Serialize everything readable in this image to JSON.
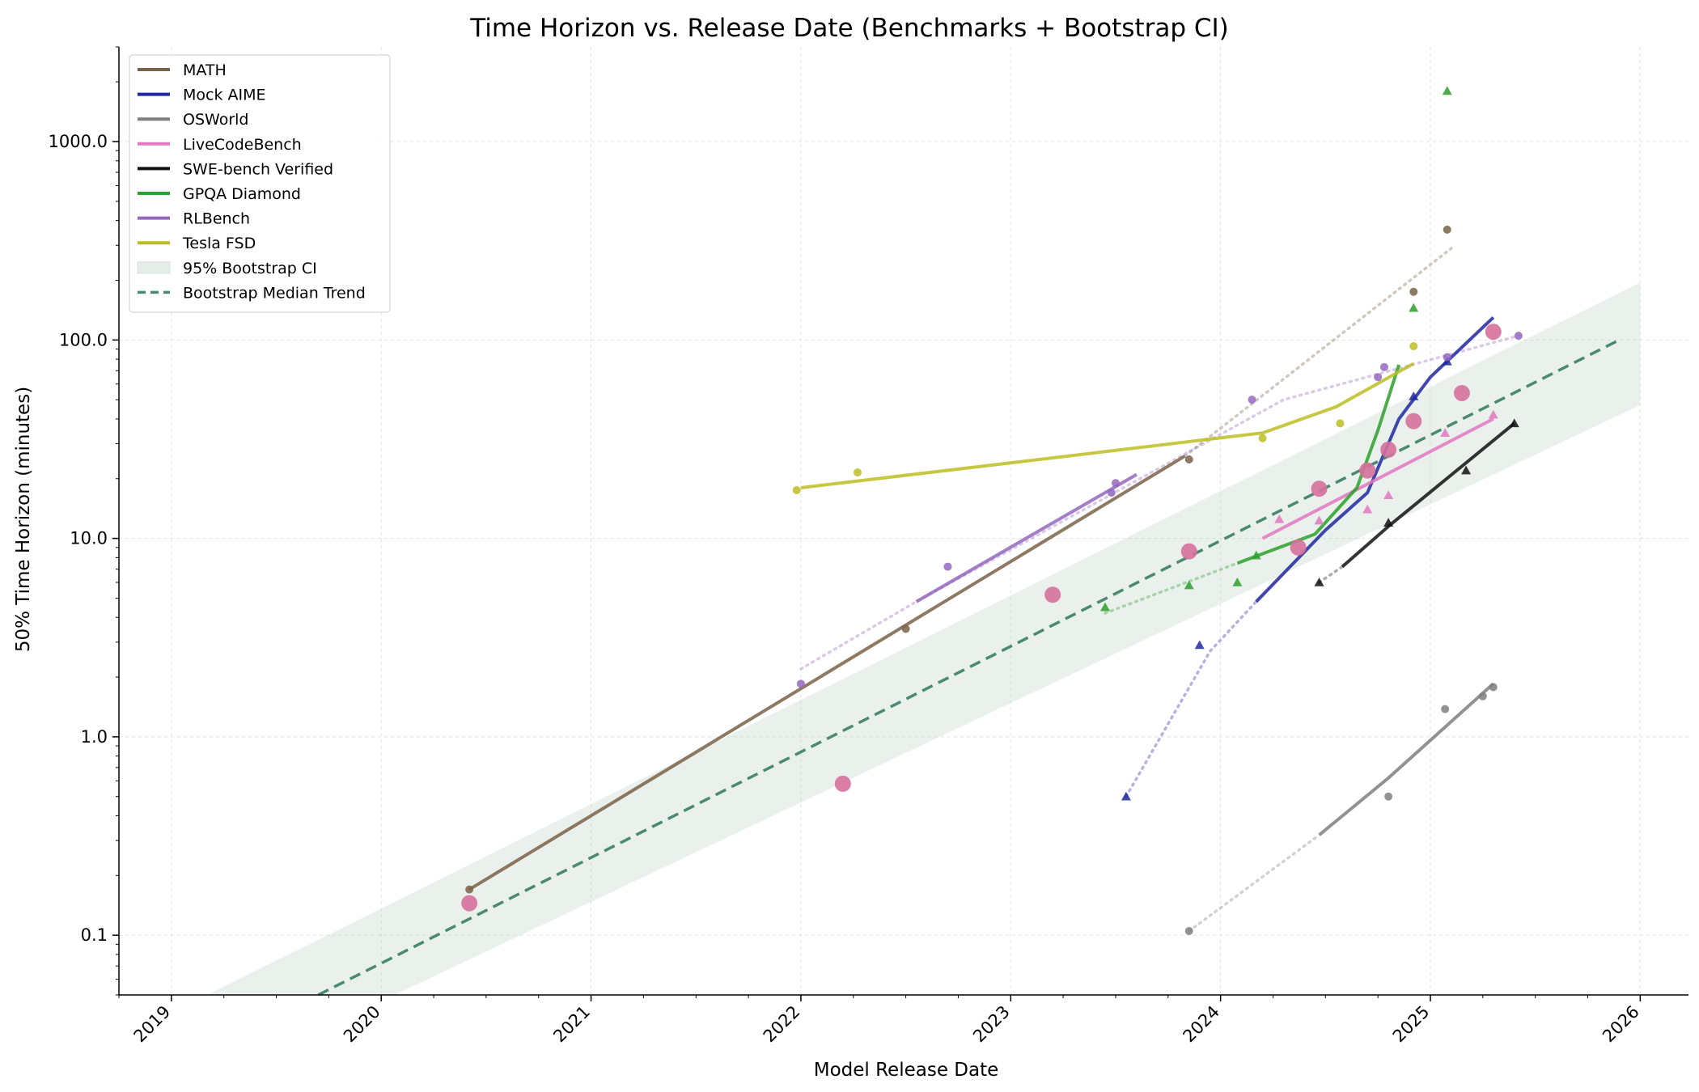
{
  "chart_data": {
    "type": "line",
    "title": "Time Horizon vs. Release Date (Benchmarks + Bootstrap CI)",
    "xlabel": "Model Release Date",
    "ylabel": "50% Time Horizon (minutes)",
    "xlim": [
      2018.75,
      2026.23
    ],
    "ylim": [
      0.05,
      3000
    ],
    "yscale": "log",
    "x_ticks": [
      2019,
      2020,
      2021,
      2022,
      2023,
      2024,
      2025,
      2026
    ],
    "x_tick_labels": [
      "2019",
      "2020",
      "2021",
      "2022",
      "2023",
      "2024",
      "2025",
      "2026"
    ],
    "y_ticks": [
      0.1,
      1,
      10,
      100,
      1000
    ],
    "y_tick_labels": [
      "0.1",
      "1.0",
      "10.0",
      "100.0",
      "1000.0"
    ],
    "grid": true,
    "legend_position": "top-left",
    "series": [
      {
        "name": "MATH",
        "color": "#7a6248",
        "marker": "circle",
        "fit": [
          [
            2020.42,
            0.17
          ],
          [
            2023.83,
            26
          ]
        ],
        "points": [
          [
            2020.42,
            0.17
          ],
          [
            2022.5,
            3.5
          ],
          [
            2023.85,
            25
          ],
          [
            2024.92,
            175
          ],
          [
            2025.08,
            360
          ]
        ],
        "ext": [
          [
            2023.83,
            26
          ],
          [
            2025.1,
            290
          ]
        ]
      },
      {
        "name": "Mock AIME",
        "color": "#1f28a0",
        "marker": "triangle",
        "fit": [
          [
            2024.17,
            4.8
          ],
          [
            2024.5,
            11
          ],
          [
            2024.7,
            17
          ],
          [
            2024.85,
            40
          ],
          [
            2025.0,
            65
          ],
          [
            2025.3,
            130
          ]
        ],
        "points": [
          [
            2023.55,
            0.5
          ],
          [
            2023.9,
            2.9
          ],
          [
            2024.92,
            52
          ],
          [
            2025.08,
            78
          ]
        ],
        "ext": [
          [
            2023.55,
            0.5
          ],
          [
            2023.95,
            2.7
          ],
          [
            2024.17,
            4.8
          ]
        ]
      },
      {
        "name": "OSWorld",
        "color": "#7f7f7f",
        "marker": "circle",
        "fit": [
          [
            2024.47,
            0.32
          ],
          [
            2024.8,
            0.62
          ],
          [
            2025.3,
            1.85
          ]
        ],
        "points": [
          [
            2023.85,
            0.105
          ],
          [
            2024.8,
            0.5
          ],
          [
            2025.07,
            1.38
          ],
          [
            2025.25,
            1.6
          ],
          [
            2025.3,
            1.78
          ]
        ],
        "ext": [
          [
            2023.85,
            0.105
          ],
          [
            2024.47,
            0.32
          ]
        ]
      },
      {
        "name": "LiveCodeBench",
        "color": "#e377c2",
        "marker": "triangle",
        "fit": [
          [
            2024.2,
            10
          ],
          [
            2025.3,
            40
          ]
        ],
        "points": [
          [
            2024.28,
            12.5
          ],
          [
            2024.47,
            12.3
          ],
          [
            2024.7,
            14
          ],
          [
            2024.8,
            16.5
          ],
          [
            2025.07,
            34
          ],
          [
            2025.3,
            42
          ]
        ],
        "ext": []
      },
      {
        "name": "SWE-bench Verified",
        "color": "#111111",
        "marker": "triangle",
        "fit": [
          [
            2024.58,
            7.2
          ],
          [
            2024.8,
            11.5
          ],
          [
            2025.4,
            38
          ]
        ],
        "points": [
          [
            2024.47,
            6
          ],
          [
            2024.8,
            12
          ],
          [
            2025.17,
            22
          ],
          [
            2025.4,
            38
          ]
        ],
        "ext": [
          [
            2024.47,
            6
          ],
          [
            2024.58,
            7.2
          ]
        ]
      },
      {
        "name": "GPQA Diamond",
        "color": "#2ca02c",
        "marker": "triangle",
        "fit": [
          [
            2024.08,
            7.5
          ],
          [
            2024.45,
            10.5
          ],
          [
            2024.65,
            18
          ],
          [
            2024.75,
            35
          ],
          [
            2024.85,
            75
          ]
        ],
        "points": [
          [
            2023.45,
            4.5
          ],
          [
            2023.85,
            5.8
          ],
          [
            2024.08,
            6
          ],
          [
            2024.17,
            8.2
          ],
          [
            2024.92,
            145
          ],
          [
            2025.08,
            1800
          ]
        ],
        "ext": [
          [
            2023.45,
            4.2
          ],
          [
            2024.08,
            7.5
          ]
        ]
      },
      {
        "name": "RLBench",
        "color": "#9467bd",
        "marker": "circle",
        "fit": [
          [
            2022.55,
            4.8
          ],
          [
            2023.6,
            21
          ]
        ],
        "points": [
          [
            2022.0,
            1.85
          ],
          [
            2022.7,
            7.2
          ],
          [
            2023.48,
            17
          ],
          [
            2023.5,
            19
          ],
          [
            2024.15,
            50
          ],
          [
            2024.75,
            65
          ],
          [
            2024.78,
            73
          ],
          [
            2025.08,
            82
          ],
          [
            2025.42,
            105
          ]
        ],
        "ext": [
          [
            2022.0,
            2.2
          ],
          [
            2022.55,
            4.8
          ],
          [
            2024.3,
            50
          ],
          [
            2025.42,
            105
          ]
        ]
      },
      {
        "name": "Tesla FSD",
        "color": "#bcbd22",
        "marker": "circle",
        "fit": [
          [
            2022.0,
            18
          ],
          [
            2024.2,
            34
          ],
          [
            2024.55,
            46
          ],
          [
            2024.92,
            76
          ]
        ],
        "points": [
          [
            2021.98,
            17.5
          ],
          [
            2022.27,
            21.5
          ],
          [
            2024.2,
            32
          ],
          [
            2024.57,
            38
          ],
          [
            2024.92,
            93
          ]
        ],
        "ext": []
      }
    ],
    "big_points": {
      "color": "#d6709b",
      "points": [
        [
          2020.42,
          0.145
        ],
        [
          2022.2,
          0.58
        ],
        [
          2023.2,
          5.2
        ],
        [
          2023.85,
          8.6
        ],
        [
          2024.37,
          9
        ],
        [
          2024.47,
          17.8
        ],
        [
          2024.7,
          22
        ],
        [
          2024.8,
          28
        ],
        [
          2024.92,
          39
        ],
        [
          2025.15,
          54
        ],
        [
          2025.3,
          110
        ]
      ]
    },
    "bootstrap": {
      "name": "95% Bootstrap CI",
      "color": "#b9ccbd",
      "lower": [
        [
          2018.75,
          0.011
        ],
        [
          2026.0,
          47
        ]
      ],
      "upper": [
        [
          2018.75,
          0.03
        ],
        [
          2026.0,
          195
        ]
      ]
    },
    "trend": {
      "name": "Bootstrap Median Trend",
      "color": "#4a8a70",
      "points": [
        [
          2019.7,
          0.05
        ],
        [
          2025.9,
          100
        ]
      ]
    }
  }
}
